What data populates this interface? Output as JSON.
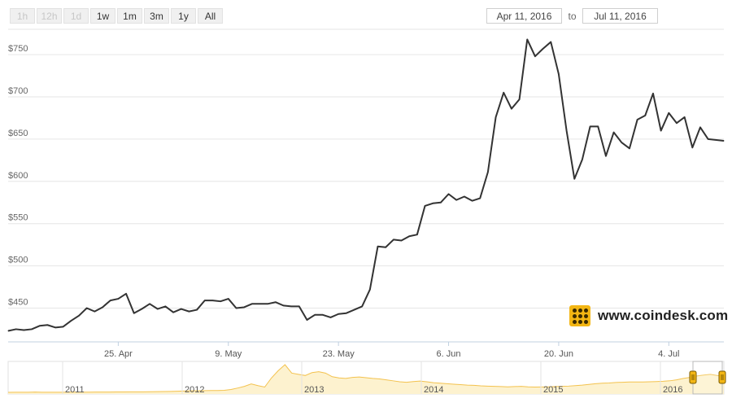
{
  "range_selector": {
    "buttons": [
      {
        "label": "1h",
        "enabled": false
      },
      {
        "label": "12h",
        "enabled": false
      },
      {
        "label": "1d",
        "enabled": false
      },
      {
        "label": "1w",
        "enabled": true
      },
      {
        "label": "1m",
        "enabled": true
      },
      {
        "label": "3m",
        "enabled": true
      },
      {
        "label": "1y",
        "enabled": true
      },
      {
        "label": "All",
        "enabled": true
      }
    ]
  },
  "date_range": {
    "from": "Apr 11, 2016",
    "to_label": "to",
    "to": "Jul 11, 2016"
  },
  "watermark": {
    "text": "www.coindesk.com",
    "icon": "coindesk-logo-icon",
    "accent_color": "#f3b614"
  },
  "colors": {
    "line": "#333333",
    "grid": "#e6e6e6",
    "navigator_fill": "#fdf2cf",
    "navigator_line": "#f3c24e",
    "handle": "#f3b614"
  },
  "chart_data": {
    "type": "line",
    "title": "",
    "xlabel": "",
    "ylabel": "",
    "y_prefix": "$",
    "ylim": [
      410,
      780
    ],
    "yticks": [
      450,
      500,
      550,
      600,
      650,
      700,
      750
    ],
    "ytick_labels": [
      "$450",
      "$500",
      "$550",
      "$600",
      "$650",
      "$700",
      "$750"
    ],
    "x_range": [
      "2016-04-11",
      "2016-07-11"
    ],
    "xticks": [
      "2016-04-25",
      "2016-05-09",
      "2016-05-23",
      "2016-06-06",
      "2016-06-20",
      "2016-07-04"
    ],
    "xtick_labels": [
      "25. Apr",
      "9. May",
      "23. May",
      "6. Jun",
      "20. Jun",
      "4. Jul"
    ],
    "grid": true,
    "legend": "none",
    "series": [
      {
        "x": [
          "2016-04-11",
          "2016-04-12",
          "2016-04-13",
          "2016-04-14",
          "2016-04-15",
          "2016-04-16",
          "2016-04-17",
          "2016-04-18",
          "2016-04-19",
          "2016-04-20",
          "2016-04-21",
          "2016-04-22",
          "2016-04-23",
          "2016-04-24",
          "2016-04-25",
          "2016-04-26",
          "2016-04-27",
          "2016-04-28",
          "2016-04-29",
          "2016-04-30",
          "2016-05-01",
          "2016-05-02",
          "2016-05-03",
          "2016-05-04",
          "2016-05-05",
          "2016-05-06",
          "2016-05-07",
          "2016-05-08",
          "2016-05-09",
          "2016-05-10",
          "2016-05-11",
          "2016-05-12",
          "2016-05-13",
          "2016-05-14",
          "2016-05-15",
          "2016-05-16",
          "2016-05-17",
          "2016-05-18",
          "2016-05-19",
          "2016-05-20",
          "2016-05-21",
          "2016-05-22",
          "2016-05-23",
          "2016-05-24",
          "2016-05-25",
          "2016-05-26",
          "2016-05-27",
          "2016-05-28",
          "2016-05-29",
          "2016-05-30",
          "2016-05-31",
          "2016-06-01",
          "2016-06-02",
          "2016-06-03",
          "2016-06-04",
          "2016-06-05",
          "2016-06-06",
          "2016-06-07",
          "2016-06-08",
          "2016-06-09",
          "2016-06-10",
          "2016-06-11",
          "2016-06-12",
          "2016-06-13",
          "2016-06-14",
          "2016-06-15",
          "2016-06-16",
          "2016-06-17",
          "2016-06-18",
          "2016-06-19",
          "2016-06-20",
          "2016-06-21",
          "2016-06-22",
          "2016-06-23",
          "2016-06-24",
          "2016-06-25",
          "2016-06-26",
          "2016-06-27",
          "2016-06-28",
          "2016-06-29",
          "2016-06-30",
          "2016-07-01",
          "2016-07-02",
          "2016-07-03",
          "2016-07-04",
          "2016-07-05",
          "2016-07-06",
          "2016-07-07",
          "2016-07-08",
          "2016-07-09",
          "2016-07-11"
        ],
        "values": [
          423,
          425,
          424,
          425,
          429,
          430,
          427,
          428,
          435,
          441,
          450,
          446,
          451,
          459,
          461,
          467,
          444,
          449,
          455,
          449,
          452,
          445,
          449,
          446,
          448,
          459,
          459,
          458,
          461,
          450,
          451,
          455,
          455,
          455,
          457,
          453,
          452,
          452,
          436,
          442,
          442,
          439,
          443,
          444,
          448,
          452,
          472,
          523,
          522,
          531,
          530,
          535,
          537,
          571,
          574,
          575,
          585,
          578,
          582,
          577,
          580,
          611,
          676,
          705,
          686,
          697,
          768,
          748,
          757,
          765,
          727,
          660,
          603,
          626,
          665,
          665,
          630,
          658,
          646,
          639,
          673,
          678,
          704,
          660,
          681,
          669,
          676,
          640,
          664,
          650,
          648
        ]
      }
    ]
  },
  "navigator": {
    "year_labels": [
      "2011",
      "2012",
      "2013",
      "2014",
      "2015",
      "2016"
    ],
    "values": [
      0.3,
      3,
      5,
      5,
      12,
      5,
      5,
      6,
      6,
      7,
      8,
      9,
      10,
      11,
      12,
      14,
      16,
      18,
      20,
      20,
      20,
      25,
      30,
      35,
      40,
      48,
      55,
      62,
      68,
      72,
      74,
      76,
      85,
      120,
      180,
      250,
      350,
      280,
      220,
      600,
      900,
      1150,
      800,
      750,
      700,
      820,
      860,
      800,
      650,
      600,
      580,
      620,
      640,
      610,
      580,
      560,
      520,
      480,
      440,
      420,
      450,
      470,
      440,
      400,
      380,
      360,
      340,
      320,
      300,
      290,
      270,
      260,
      250,
      240,
      230,
      240,
      250,
      230,
      220,
      225,
      230,
      240,
      250,
      260,
      280,
      300,
      330,
      360,
      380,
      390,
      410,
      420,
      430,
      430,
      430,
      440,
      450,
      460,
      480,
      520,
      580,
      620,
      680,
      720,
      750,
      700,
      660
    ],
    "selection_from": "2016-04-11",
    "selection_to": "2016-07-11"
  }
}
